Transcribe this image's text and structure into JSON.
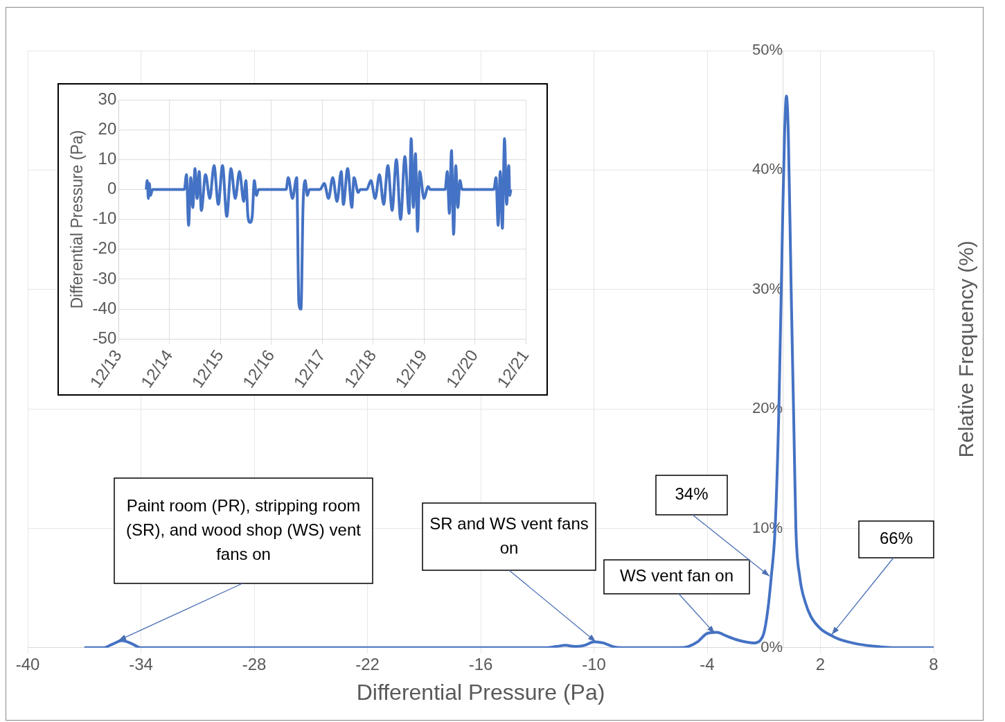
{
  "chart_data": [
    {
      "type": "line",
      "xlabel": "Differential Pressure (Pa)",
      "ylabel": "Relative Frequency (%)",
      "color": "#4472c4",
      "marker": "none",
      "grid": true,
      "x": [
        -37,
        -36,
        -35.5,
        -35,
        -34.5,
        -34,
        -33,
        -12.5,
        -12,
        -11.5,
        -11,
        -10.5,
        -10,
        -9.5,
        -9,
        -8.5,
        -5.5,
        -5,
        -4.5,
        -4,
        -3.5,
        -3,
        -2.5,
        -2,
        -1.5,
        -1.2,
        -1,
        -0.8,
        -0.6,
        -0.4,
        -0.2,
        0,
        0.1,
        0.2,
        0.3,
        0.45,
        0.6,
        0.7,
        0.9,
        1.2,
        1.5,
        2,
        2.6,
        3,
        4,
        5,
        6,
        8
      ],
      "values": [
        0,
        0,
        0.3,
        0.6,
        0.35,
        0,
        0,
        0,
        0.1,
        0.2,
        0.1,
        0.2,
        0.5,
        0.4,
        0.1,
        0,
        0,
        0.1,
        0.5,
        1.2,
        1.3,
        1,
        0.7,
        0.5,
        0.4,
        0.6,
        1.2,
        3,
        6,
        10,
        20,
        36,
        43,
        46.2,
        43,
        30,
        18,
        10,
        6,
        3.8,
        2.6,
        1.6,
        1,
        0.7,
        0.3,
        0.1,
        0,
        0
      ],
      "xlim": [
        -40,
        8
      ],
      "xticks": [
        -40,
        -34,
        -28,
        -22,
        -16,
        -10,
        -4,
        2,
        8
      ],
      "ylim": [
        0,
        50
      ],
      "yticks": [
        {
          "value": 0,
          "label": "0%"
        },
        {
          "value": 10,
          "label": "10%"
        },
        {
          "value": 20,
          "label": "20%"
        },
        {
          "value": 30,
          "label": "30%"
        },
        {
          "value": 40,
          "label": "40%"
        },
        {
          "value": 50,
          "label": "50%"
        }
      ],
      "annotations": [
        {
          "text": "Paint room (PR), stripping room (SR), and wood shop (WS) vent fans on",
          "x": -35.2,
          "y": 0.6
        },
        {
          "text": "SR and WS vent fans on",
          "x": -9.9,
          "y": 0.5
        },
        {
          "text": "WS vent fan on",
          "x": -3.6,
          "y": 1.2
        },
        {
          "text": "34%",
          "x": -0.7,
          "y": 6
        },
        {
          "text": "66%",
          "x": 2.6,
          "y": 1.1
        }
      ]
    },
    {
      "type": "line",
      "ylabel": "Differential Pressure (Pa)",
      "color": "#4472c4",
      "marker": "none",
      "grid": true,
      "x": [
        "--12-13T13:00",
        "--12-13T13:30",
        "--12-13T14:00",
        "--12-13T14:30",
        "--12-13T15:00",
        "--12-13T16:00",
        "--12-14T07:00",
        "--12-14T08:00",
        "--12-14T09:00",
        "--12-14T10:00",
        "--12-14T11:00",
        "--12-14T12:00",
        "--12-14T13:00",
        "--12-14T14:00",
        "--12-14T15:00",
        "--12-14T17:00",
        "--12-14T19:00",
        "--12-14T21:00",
        "--12-14T23:00",
        "--12-15T01:00",
        "--12-15T03:00",
        "--12-15T05:00",
        "--12-15T07:00",
        "--12-15T09:00",
        "--12-15T11:00",
        "--12-15T12:00",
        "--12-15T13:00",
        "--12-15T14:00",
        "--12-15T15:00",
        "--12-15T16:00",
        "--12-15T17:00",
        "--12-15T18:00",
        "--12-16T07:00",
        "--12-16T08:00",
        "--12-16T10:00",
        "--12-16T12:00",
        "--12-16T13:00",
        "--12-16T14:00",
        "--12-16T15:00",
        "--12-16T16:00",
        "--12-16T17:00",
        "--12-16T18:00",
        "--12-16T23:00",
        "--12-17T01:00",
        "--12-17T03:00",
        "--12-17T05:00",
        "--12-17T07:00",
        "--12-17T09:00",
        "--12-17T10:00",
        "--12-17T12:00",
        "--12-17T14:00",
        "--12-17T15:00",
        "--12-17T17:00",
        "--12-17T18:00",
        "--12-17T21:00",
        "--12-17T23:00",
        "--12-18T01:00",
        "--12-18T03:00",
        "--12-18T05:00",
        "--12-18T07:00",
        "--12-18T09:00",
        "--12-18T11:00",
        "--12-18T13:00",
        "--12-18T15:00",
        "--12-18T17:00",
        "--12-18T18:00",
        "--12-18T19:00",
        "--12-18T20:00",
        "--12-18T21:00",
        "--12-18T22:00",
        "--12-19T00:00",
        "--12-19T02:00",
        "--12-19T03:00",
        "--12-19T10:00",
        "--12-19T11:00",
        "--12-19T12:00",
        "--12-19T13:00",
        "--12-19T14:00",
        "--12-19T15:00",
        "--12-19T16:00",
        "--12-19T17:00",
        "--12-19T18:00",
        "--12-20T09:00",
        "--12-20T10:00",
        "--12-20T11:00",
        "--12-20T12:00",
        "--12-20T13:00",
        "--12-20T14:00",
        "--12-20T15:00",
        "--12-20T16:00",
        "--12-20T16:30",
        "--12-20T17:00"
      ],
      "values": [
        0,
        3,
        -3,
        2,
        -2,
        0,
        0,
        5,
        -12,
        4,
        -6,
        7,
        -3,
        6,
        -7,
        5,
        -3,
        8,
        -5,
        8,
        -9,
        7,
        -3,
        6,
        -4,
        3,
        -9,
        -11,
        -9,
        3,
        -2,
        0,
        0,
        4,
        -3,
        4,
        -38,
        -40,
        -5,
        3,
        -2,
        0,
        0,
        2,
        -3,
        4,
        -4,
        6,
        -5,
        7,
        -6,
        4,
        -1,
        0,
        0,
        3,
        -3,
        5,
        -5,
        8,
        -7,
        10,
        -10,
        11,
        -8,
        17,
        -6,
        12,
        -14,
        6,
        -3,
        1,
        0,
        0,
        6,
        -8,
        13,
        -15,
        8,
        -6,
        3,
        0,
        0,
        4,
        -12,
        6,
        -13,
        17,
        -5,
        8,
        -2,
        0
      ],
      "xlim": [
        "--12-13",
        "--12-21"
      ],
      "xticks": [
        {
          "value": "--12-13",
          "label": "12/13"
        },
        {
          "value": "--12-14",
          "label": "12/14"
        },
        {
          "value": "--12-15",
          "label": "12/15"
        },
        {
          "value": "--12-16",
          "label": "12/16"
        },
        {
          "value": "--12-17",
          "label": "12/17"
        },
        {
          "value": "--12-18",
          "label": "12/18"
        },
        {
          "value": "--12-19",
          "label": "12/19"
        },
        {
          "value": "--12-20",
          "label": "12/20"
        },
        {
          "value": "--12-21",
          "label": "12/21"
        }
      ],
      "ylim": [
        -50,
        30
      ],
      "yticks": [
        -50,
        -40,
        -30,
        -20,
        -10,
        0,
        10,
        20,
        30
      ]
    }
  ]
}
